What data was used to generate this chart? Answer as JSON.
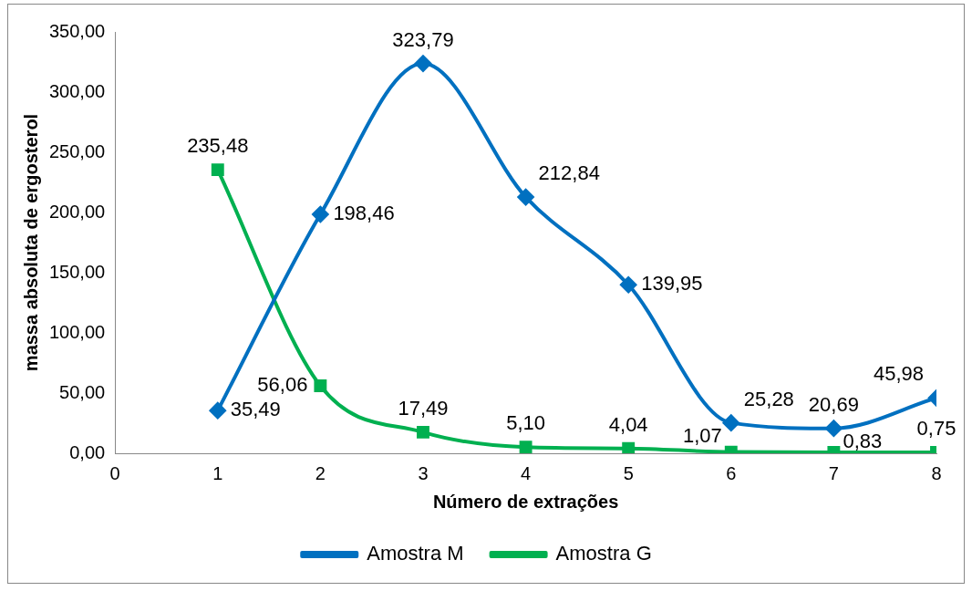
{
  "chart_data": {
    "type": "line",
    "xlabel": "Número de extrações",
    "ylabel": "massa absoluta de ergosterol",
    "x": [
      1,
      2,
      3,
      4,
      5,
      6,
      7,
      8
    ],
    "series": [
      {
        "name": "Amostra M",
        "color": "#0070c0",
        "marker": "diamond",
        "values": [
          35.49,
          198.46,
          323.79,
          212.84,
          139.95,
          25.28,
          20.69,
          45.98
        ],
        "value_labels": [
          "35,49",
          "198,46",
          "323,79",
          "212,84",
          "139,95",
          "25,28",
          "20,69",
          "45,98"
        ]
      },
      {
        "name": "Amostra G",
        "color": "#00b050",
        "marker": "square",
        "values": [
          235.48,
          56.06,
          17.49,
          5.1,
          4.04,
          1.07,
          0.83,
          0.75
        ],
        "value_labels": [
          "235,48",
          "56,06",
          "17,49",
          "5,10",
          "4,04",
          "1,07",
          "0,83",
          "0,75"
        ]
      }
    ],
    "xlim": [
      0,
      8
    ],
    "xticks": [
      0,
      1,
      2,
      3,
      4,
      5,
      6,
      7,
      8
    ],
    "ylim": [
      0,
      350
    ],
    "yticks": [
      {
        "value": 0,
        "label": "0,00"
      },
      {
        "value": 50,
        "label": "50,00"
      },
      {
        "value": 100,
        "label": "100,00"
      },
      {
        "value": 150,
        "label": "150,00"
      },
      {
        "value": 200,
        "label": "200,00"
      },
      {
        "value": 250,
        "label": "250,00"
      },
      {
        "value": 300,
        "label": "300,00"
      },
      {
        "value": 350,
        "label": "350,00"
      }
    ],
    "grid": false,
    "legend": "bottom",
    "line_style": "solid"
  }
}
